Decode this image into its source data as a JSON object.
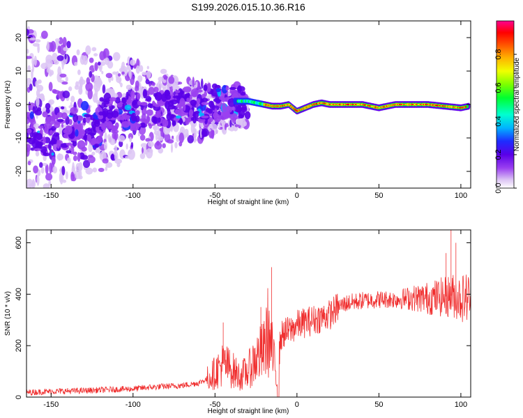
{
  "title": "S199.2026.015.10.36.R16",
  "chart_data": [
    {
      "type": "heatmap",
      "title": "S199.2026.015.10.36.R16",
      "xlabel": "Height of straight line (km)",
      "ylabel": "Frequency (Hz)",
      "xlim": [
        -165,
        106
      ],
      "ylim": [
        -25,
        25
      ],
      "xticks": [
        -150,
        -100,
        -50,
        0,
        50,
        100
      ],
      "yticks": [
        -20,
        -10,
        0,
        10,
        20
      ],
      "colorbar": {
        "label": "Normalized spectral amplitude",
        "range": [
          0.0,
          1.0
        ],
        "ticks": [
          "0.0",
          "0.2",
          "0.4",
          "0.6",
          "0.8"
        ],
        "colors": [
          "#ffffff",
          "#dcc4f4",
          "#9a40f0",
          "#5a00e8",
          "#1e2cff",
          "#00b4ff",
          "#00ffd0",
          "#00ff30",
          "#7cff00",
          "#f0ff00",
          "#ffb000",
          "#ff5000",
          "#ff0000",
          "#ff0090"
        ]
      },
      "ridge": {
        "description_points_x": [
          -35,
          -30,
          -25,
          -20,
          -15,
          -10,
          -5,
          0,
          5,
          10,
          15,
          20,
          30,
          40,
          50,
          60,
          70,
          80,
          90,
          100,
          105
        ],
        "frequency": [
          1,
          1,
          0.5,
          0,
          -0.5,
          -0.5,
          0,
          -2,
          -1,
          0,
          0.5,
          0,
          0,
          0,
          -1,
          0,
          0,
          0,
          -0.5,
          -1,
          -0.5
        ]
      }
    },
    {
      "type": "line",
      "xlabel": "Height of straight line (km)",
      "ylabel": "SNR (10 * v/v)",
      "xlim": [
        -165,
        106
      ],
      "ylim": [
        0,
        650
      ],
      "xticks": [
        -150,
        -100,
        -50,
        0,
        50,
        100
      ],
      "yticks": [
        0,
        200,
        400,
        600
      ],
      "color": "#f03030",
      "series": [
        {
          "x": [
            -165,
            -150,
            -130,
            -110,
            -100,
            -90,
            -80,
            -70,
            -60,
            -55,
            -50,
            -45,
            -40,
            -35,
            -30,
            -25,
            -20,
            -18,
            -15,
            -12,
            -10,
            -8,
            -5,
            0,
            5,
            10,
            15,
            20,
            25,
            30,
            40,
            50,
            60,
            70,
            80,
            90,
            95,
            100,
            105
          ],
          "values": [
            18,
            22,
            25,
            30,
            32,
            38,
            42,
            45,
            55,
            70,
            95,
            130,
            110,
            80,
            100,
            150,
            180,
            260,
            170,
            60,
            230,
            250,
            255,
            280,
            290,
            300,
            310,
            320,
            350,
            365,
            375,
            380,
            380,
            385,
            385,
            390,
            395,
            385,
            390
          ]
        }
      ],
      "spikes": [
        {
          "x": -15.5,
          "value": 505
        },
        {
          "x": -22,
          "value": 350
        },
        {
          "x": -45,
          "value": 290
        },
        {
          "x": 94,
          "value": 650
        },
        {
          "x": 97,
          "value": 600
        },
        {
          "x": 91,
          "value": 560
        }
      ]
    }
  ]
}
